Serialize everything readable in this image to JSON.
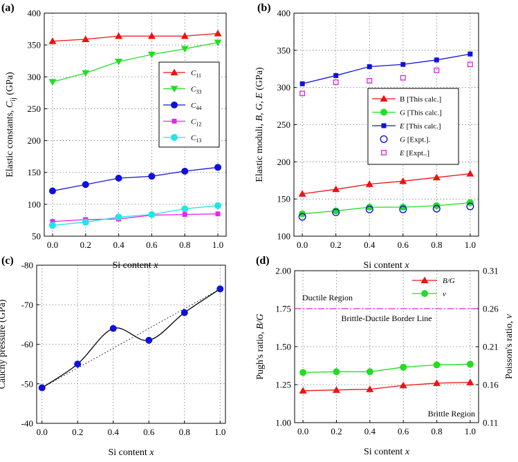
{
  "colors": {
    "red": "#ee1111",
    "green": "#22dd22",
    "blue": "#1010dd",
    "magenta": "#ee22ee",
    "cyan": "#22e6e6",
    "orchid": "#dd22dd",
    "black": "#000000"
  },
  "chart_data": [
    {
      "id": "a",
      "type": "line",
      "panel_label": "(a)",
      "xlabel": "Si content x",
      "xlabel_main": "Si content ",
      "xlabel_var": "x",
      "ylabel": "Elastic constants, Cij (GPa)",
      "ylabel_main": "Elastic constants, ",
      "ylabel_var": "C",
      "ylabel_sub": "ij",
      "ylabel_unit": " (GPa)",
      "xlim": [
        -0.05,
        1.05
      ],
      "ylim": [
        50,
        400
      ],
      "xticks": [
        "0.0",
        "0.2",
        "0.4",
        "0.6",
        "0.8",
        "1.0"
      ],
      "yticks": [
        "50",
        "100",
        "150",
        "200",
        "250",
        "300",
        "350",
        "400"
      ],
      "legend_position": "center-right",
      "x": [
        0.0,
        0.2,
        0.4,
        0.6,
        0.8,
        1.0
      ],
      "series": [
        {
          "name": "C11",
          "label_var": "C",
          "label_sub": "11",
          "color": "red",
          "marker": "triangle-up",
          "values": [
            356,
            359,
            364,
            364,
            364,
            368
          ]
        },
        {
          "name": "C33",
          "label_var": "C",
          "label_sub": "33",
          "color": "green",
          "marker": "triangle-down",
          "values": [
            292,
            306,
            324,
            335,
            344,
            354
          ]
        },
        {
          "name": "C44",
          "label_var": "C",
          "label_sub": "44",
          "color": "blue",
          "marker": "circle",
          "values": [
            121,
            131,
            141,
            144,
            152,
            158
          ]
        },
        {
          "name": "C12",
          "label_var": "C",
          "label_sub": "12",
          "color": "magenta",
          "marker": "square",
          "values": [
            73,
            76,
            77,
            83,
            84,
            85
          ]
        },
        {
          "name": "C13",
          "label_var": "C",
          "label_sub": "13",
          "color": "cyan",
          "marker": "circle",
          "values": [
            67,
            72,
            80,
            84,
            93,
            98
          ]
        }
      ]
    },
    {
      "id": "b",
      "type": "line",
      "panel_label": "(b)",
      "xlabel": "Si content x",
      "xlabel_main": "Si content ",
      "xlabel_var": "x",
      "ylabel": "Elastic moduli, B, G, E (GPa)",
      "ylabel_main": "Elastic moduli, ",
      "ylabel_var": "B, G, E",
      "ylabel_unit": " (GPa)",
      "xlim": [
        -0.05,
        1.05
      ],
      "ylim": [
        100,
        400
      ],
      "xticks": [
        "0.0",
        "0.2",
        "0.4",
        "0.6",
        "0.8",
        "1.0"
      ],
      "yticks": [
        "100",
        "150",
        "200",
        "250",
        "300",
        "350",
        "400"
      ],
      "legend_position": "center-right",
      "x": [
        0.0,
        0.2,
        0.4,
        0.6,
        0.8,
        1.0
      ],
      "series": [
        {
          "name": "B [This calc.]",
          "label_var": "",
          "label_text": "B [This calc.]",
          "color": "red",
          "marker": "triangle-up",
          "line": true,
          "values": [
            157,
            163,
            170,
            174,
            179,
            184
          ]
        },
        {
          "name": "G [This calc.]",
          "label_var": "G",
          "label_text": " [This calc.]",
          "color": "green",
          "marker": "circle",
          "line": true,
          "values": [
            130,
            134,
            139,
            139,
            141,
            145
          ]
        },
        {
          "name": "E [This calc.]",
          "label_var": "E",
          "label_text": " [This calc.]",
          "color": "blue",
          "marker": "square",
          "line": true,
          "values": [
            305,
            316,
            328,
            331,
            337,
            345
          ]
        },
        {
          "name": "G [Expt.]",
          "label_var": "G",
          "label_text": " [Expt.].",
          "color": "blue",
          "marker": "circle-open",
          "line": false,
          "values": [
            126,
            132,
            136,
            136,
            137,
            140
          ]
        },
        {
          "name": "E [Expt.]",
          "label_var": "E",
          "label_text": " [Expt..]",
          "color": "orchid",
          "marker": "square-open",
          "line": false,
          "values": [
            292,
            307,
            309,
            313,
            323,
            331
          ]
        }
      ]
    },
    {
      "id": "c",
      "type": "line",
      "panel_label": "(c)",
      "xlabel": "Si content x",
      "xlabel_main": "Si content ",
      "xlabel_var": "x",
      "ylabel": "Cauchy pressure (GPa)",
      "xlim": [
        -0.03,
        1.03
      ],
      "ylim": [
        -40,
        -80
      ],
      "xticks": [
        "0.0",
        "0.2",
        "0.4",
        "0.6",
        "0.8",
        "1.0"
      ],
      "yticks": [
        "-40",
        "-50",
        "-60",
        "-70",
        "-80"
      ],
      "x": [
        0.0,
        0.2,
        0.4,
        0.6,
        0.8,
        1.0
      ],
      "series": [
        {
          "name": "Cauchy pressure",
          "color": "blue",
          "marker": "circle",
          "values": [
            -49,
            -55,
            -64,
            -61,
            -68,
            -74
          ]
        }
      ],
      "trend_line": {
        "style": "dotted",
        "from": [
          0.0,
          -49
        ],
        "to": [
          1.0,
          -74
        ]
      }
    },
    {
      "id": "d",
      "type": "line",
      "panel_label": "(d)",
      "xlabel": "Si content x",
      "xlabel_main": "Si content ",
      "xlabel_var": "x",
      "ylabel": "Pugh's ratio, B/G",
      "ylabel_main": "Pugh's ratio, ",
      "ylabel_var": "B/G",
      "ylabel_right": "Poisson's ratio, v",
      "ylabel_right_main": "Poisson's ratio, ",
      "ylabel_right_var": "v",
      "xlim": [
        -0.05,
        1.05
      ],
      "ylim": [
        1.0,
        2.0
      ],
      "ylim_right": [
        0.11,
        0.31
      ],
      "xticks": [
        "0.0",
        "0.2",
        "0.4",
        "0.6",
        "0.8",
        "1.0"
      ],
      "yticks": [
        "1.00",
        "1.25",
        "1.50",
        "1.75",
        "2.00"
      ],
      "yticks_right": [
        "0.11",
        "0.16",
        "0.21",
        "0.26",
        "0.31"
      ],
      "legend_position": "top-right",
      "x": [
        0.0,
        0.2,
        0.4,
        0.6,
        0.8,
        1.0
      ],
      "series": [
        {
          "name": "B/G",
          "label_var": "B/G",
          "color": "red",
          "marker": "triangle-up",
          "axis": "left",
          "values": [
            1.21,
            1.215,
            1.22,
            1.245,
            1.26,
            1.265
          ]
        },
        {
          "name": "v",
          "label_var": "v",
          "color": "green",
          "marker": "circle",
          "axis": "right",
          "values": [
            0.176,
            0.177,
            0.177,
            0.183,
            0.186,
            0.187
          ]
        }
      ],
      "border_line": {
        "value": 1.75,
        "label": "Brittle-Ductile Border Line",
        "color": "orchid"
      },
      "annotations": {
        "ductile": "Ductile Region",
        "brittle": "Brittle Region"
      }
    }
  ]
}
